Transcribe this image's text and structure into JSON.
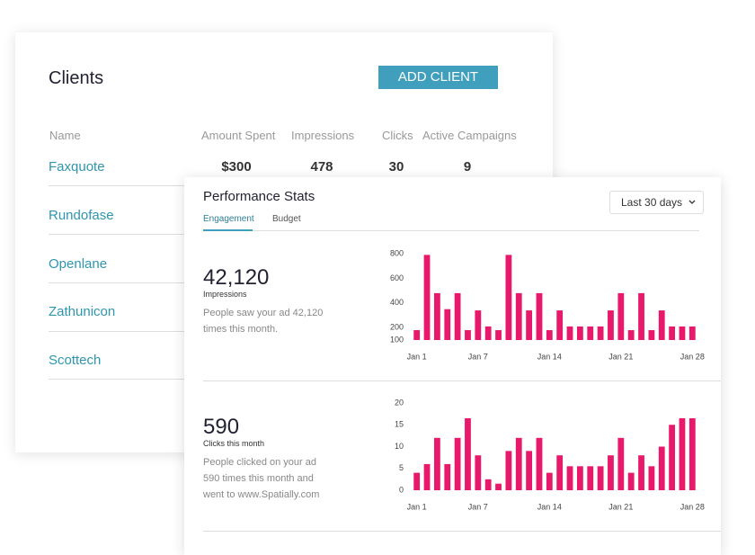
{
  "clients": {
    "title": "Clients",
    "button": "ADD CLIENT",
    "columns": [
      "Name",
      "Amount Spent",
      "Impressions",
      "Clicks",
      "Active Campaigns"
    ],
    "rows": [
      [
        "Faxquote",
        "$300",
        "478",
        "30",
        "9"
      ],
      [
        "Rundofase"
      ],
      [
        "Openlane"
      ],
      [
        "Zathunicon"
      ],
      [
        "Scottech"
      ]
    ]
  },
  "performance": {
    "title": "Performance Stats",
    "tabs": [
      "Engagement",
      "Budget"
    ],
    "range": "Last 30 days",
    "sections": [
      {
        "value": "42,120",
        "label": "Impressions",
        "description": "People saw your ad 42,120 times this month."
      },
      {
        "value": "590",
        "label": "Clicks this month",
        "description": "People clicked on your ad 590 times this month and went to www.Spatially.com"
      }
    ]
  },
  "chart_data": [
    {
      "type": "bar",
      "color": "#e8196a",
      "categories": [
        "Jan 1",
        null,
        null,
        null,
        null,
        null,
        "Jan 7",
        null,
        null,
        null,
        null,
        null,
        null,
        "Jan 14",
        null,
        null,
        null,
        null,
        null,
        null,
        "Jan 21",
        null,
        null,
        null,
        null,
        null,
        null,
        "Jan 28"
      ],
      "values": [
        180,
        790,
        480,
        350,
        480,
        180,
        340,
        210,
        180,
        790,
        480,
        340,
        480,
        180,
        340,
        210,
        210,
        210,
        210,
        340,
        480,
        180,
        480,
        180,
        340,
        210,
        210,
        210
      ],
      "ylim": [
        100,
        800
      ],
      "yticks": [
        100,
        200,
        400,
        600,
        800
      ]
    },
    {
      "type": "bar",
      "color": "#e8196a",
      "categories": [
        "Jan 1",
        null,
        null,
        null,
        null,
        null,
        "Jan 7",
        null,
        null,
        null,
        null,
        null,
        null,
        "Jan 14",
        null,
        null,
        null,
        null,
        null,
        null,
        "Jan 21",
        null,
        null,
        null,
        null,
        null,
        null,
        "Jan 28"
      ],
      "values": [
        4,
        6,
        12,
        6,
        12,
        16.5,
        8,
        2.5,
        1.5,
        9,
        12,
        9,
        12,
        4,
        8,
        5.5,
        5.5,
        5.5,
        5.5,
        8,
        12,
        4,
        8,
        5.5,
        10,
        15,
        16.5,
        16.5
      ],
      "ylim": [
        0,
        20
      ],
      "yticks": [
        0,
        5,
        10,
        15,
        20
      ]
    }
  ]
}
